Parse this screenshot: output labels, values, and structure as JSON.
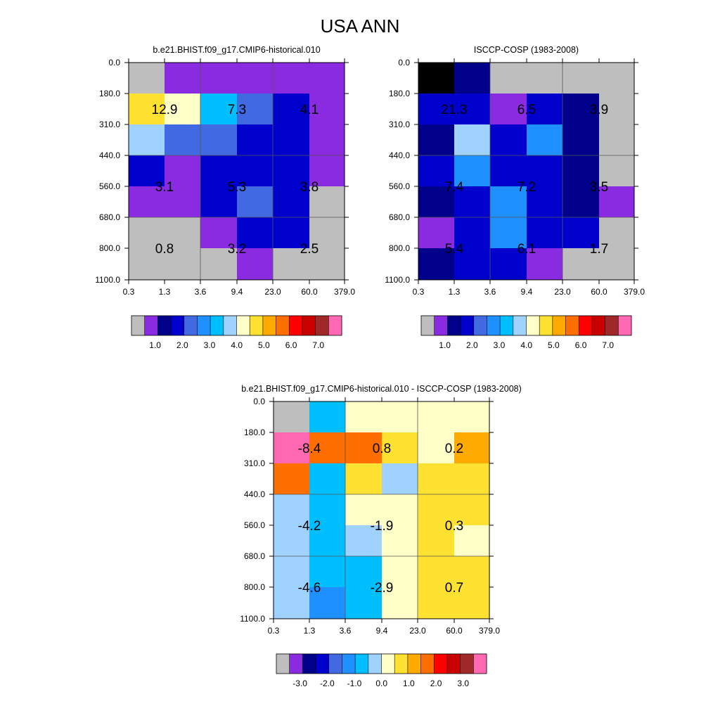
{
  "title": "USA ANN",
  "chart_data": [
    {
      "type": "heatmap",
      "panel": "model",
      "title": "b.e21.BHIST.f09_g17.CMIP6-historical.010",
      "x_ticks": [
        "0.3",
        "1.3",
        "3.6",
        "9.4",
        "23.0",
        "60.0",
        "379.0"
      ],
      "y_ticks": [
        "0.0",
        "180.0",
        "310.0",
        "440.0",
        "560.0",
        "680.0",
        "800.0",
        "1100.0"
      ],
      "cells": [
        [
          0,
          1,
          1,
          1,
          1,
          1
        ],
        [
          9,
          8,
          6,
          4,
          3,
          1
        ],
        [
          7,
          4,
          4,
          3,
          3,
          1
        ],
        [
          3,
          1,
          3,
          3,
          3,
          1
        ],
        [
          1,
          1,
          3,
          4,
          3,
          0
        ],
        [
          0,
          0,
          1,
          3,
          3,
          0
        ],
        [
          0,
          0,
          0,
          1,
          0,
          0
        ]
      ],
      "cells_note": "",
      "aggregates": [
        {
          "value": "12.9",
          "xi": 0,
          "yi": 1
        },
        {
          "value": "7.3",
          "xi": 1,
          "yi": 1
        },
        {
          "value": "4.1",
          "xi": 2,
          "yi": 1
        },
        {
          "value": "3.1",
          "xi": 0,
          "yi": 2
        },
        {
          "value": "5.3",
          "xi": 1,
          "yi": 2
        },
        {
          "value": "3.8",
          "xi": 2,
          "yi": 2
        },
        {
          "value": "0.8",
          "xi": 0,
          "yi": 3
        },
        {
          "value": "3.2",
          "xi": 1,
          "yi": 3
        },
        {
          "value": "2.5",
          "xi": 2,
          "yi": 3
        }
      ],
      "colorbar_labels": [
        "1.0",
        "2.0",
        "3.0",
        "4.0",
        "5.0",
        "6.0",
        "7.0"
      ]
    },
    {
      "type": "heatmap",
      "panel": "obs",
      "title": "ISCCP-COSP (1983-2008)",
      "x_ticks": [
        "0.3",
        "1.3",
        "3.6",
        "9.4",
        "23.0",
        "60.0",
        "379.0"
      ],
      "y_ticks": [
        "0.0",
        "180.0",
        "310.0",
        "440.0",
        "560.0",
        "680.0",
        "800.0",
        "1100.0"
      ],
      "cells": [
        [
          17,
          2,
          0,
          0,
          0,
          0
        ],
        [
          3,
          3,
          1,
          3,
          2,
          0
        ],
        [
          2,
          7,
          3,
          5,
          2,
          0
        ],
        [
          3,
          5,
          3,
          3,
          2,
          0
        ],
        [
          2,
          3,
          5,
          3,
          2,
          1
        ],
        [
          1,
          3,
          5,
          3,
          3,
          0
        ],
        [
          2,
          3,
          3,
          1,
          0,
          0
        ]
      ],
      "aggregates": [
        {
          "value": "21.3",
          "xi": 0,
          "yi": 1
        },
        {
          "value": "6.5",
          "xi": 1,
          "yi": 1
        },
        {
          "value": "3.9",
          "xi": 2,
          "yi": 1
        },
        {
          "value": "7.4",
          "xi": 0,
          "yi": 2
        },
        {
          "value": "7.2",
          "xi": 1,
          "yi": 2
        },
        {
          "value": "3.5",
          "xi": 2,
          "yi": 2
        },
        {
          "value": "5.4",
          "xi": 0,
          "yi": 3
        },
        {
          "value": "6.1",
          "xi": 1,
          "yi": 3
        },
        {
          "value": "1.7",
          "xi": 2,
          "yi": 3
        }
      ],
      "colorbar_labels": [
        "1.0",
        "2.0",
        "3.0",
        "4.0",
        "5.0",
        "6.0",
        "7.0"
      ]
    },
    {
      "type": "heatmap",
      "panel": "diff",
      "title": "b.e21.BHIST.f09_g17.CMIP6-historical.010 - ISCCP-COSP (1983-2008)",
      "x_ticks": [
        "0.3",
        "1.3",
        "3.6",
        "9.4",
        "23.0",
        "60.0",
        "379.0"
      ],
      "y_ticks": [
        "0.0",
        "180.0",
        "310.0",
        "440.0",
        "560.0",
        "680.0",
        "800.0",
        "1100.0"
      ],
      "cells": [
        [
          0,
          6,
          8,
          8,
          8,
          8
        ],
        [
          15,
          11,
          11,
          9,
          8,
          10
        ],
        [
          11,
          6,
          9,
          7,
          9,
          9
        ],
        [
          7,
          6,
          8,
          8,
          9,
          9
        ],
        [
          7,
          6,
          7,
          8,
          9,
          8
        ],
        [
          7,
          6,
          6,
          8,
          9,
          9
        ],
        [
          7,
          5,
          6,
          8,
          9,
          9
        ]
      ],
      "aggregates": [
        {
          "value": "-8.4",
          "xi": 0,
          "yi": 1
        },
        {
          "value": "0.8",
          "xi": 1,
          "yi": 1
        },
        {
          "value": "0.2",
          "xi": 2,
          "yi": 1
        },
        {
          "value": "-4.2",
          "xi": 0,
          "yi": 2
        },
        {
          "value": "-1.9",
          "xi": 1,
          "yi": 2
        },
        {
          "value": "0.3",
          "xi": 2,
          "yi": 2
        },
        {
          "value": "-4.6",
          "xi": 0,
          "yi": 3
        },
        {
          "value": "-2.9",
          "xi": 1,
          "yi": 3
        },
        {
          "value": "0.7",
          "xi": 2,
          "yi": 3
        }
      ],
      "colorbar_labels": [
        "-3.0",
        "-2.0",
        "-1.0",
        "0.0",
        "1.0",
        "2.0",
        "3.0"
      ]
    }
  ],
  "palettes": {
    "abs": [
      "#bebebe",
      "#8a2be2",
      "#00008b",
      "#0000cd",
      "#4169e1",
      "#1e90ff",
      "#00bfff",
      "#a0d2ff",
      "#ffffc8",
      "#ffe132",
      "#ffaa00",
      "#ff6e00",
      "#ff0000",
      "#c80000",
      "#a02828",
      "#ff69b4"
    ],
    "diff": [
      "#bebebe",
      "#8a2be2",
      "#00008b",
      "#0000cd",
      "#4169e1",
      "#1e90ff",
      "#00bfff",
      "#a0d2ff",
      "#ffffc8",
      "#ffe132",
      "#ffaa00",
      "#ff6e00",
      "#ff0000",
      "#c80000",
      "#a02828",
      "#ff69b4"
    ]
  }
}
